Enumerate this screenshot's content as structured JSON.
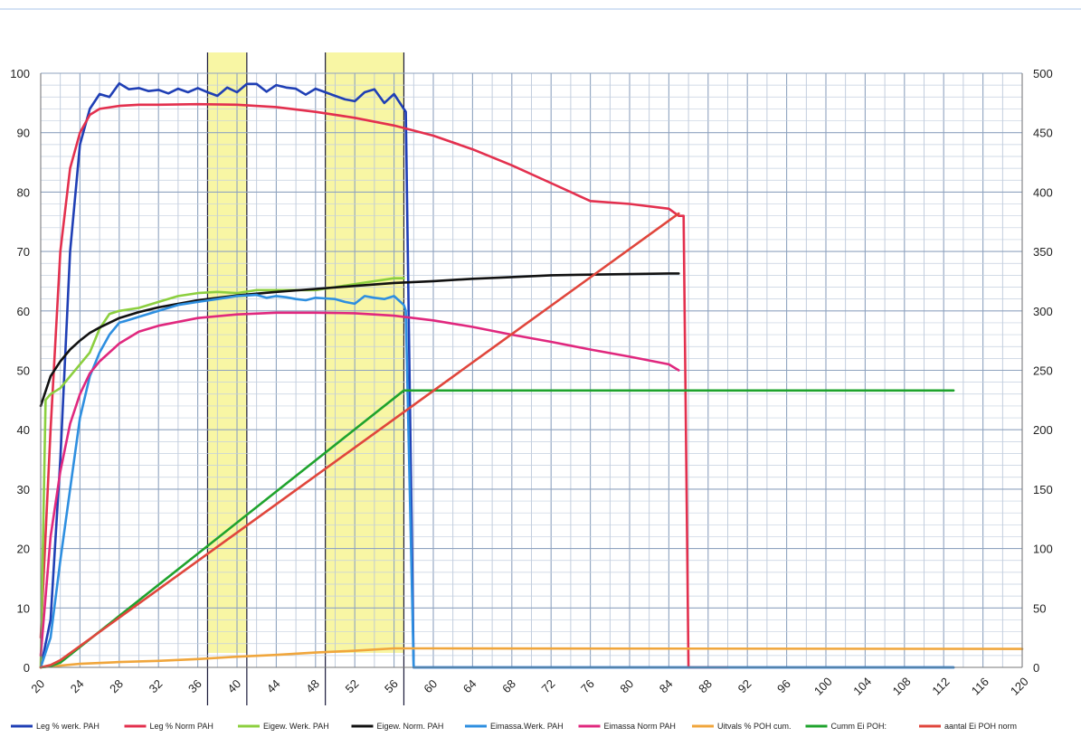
{
  "chart_data": {
    "type": "line",
    "title": "",
    "xlabel": "",
    "ylabel": "",
    "y2label": "",
    "xlim": [
      20,
      120
    ],
    "ylim": [
      0,
      100
    ],
    "y2lim": [
      0,
      500
    ],
    "x_ticks": [
      20,
      24,
      28,
      32,
      36,
      40,
      44,
      48,
      52,
      56,
      60,
      64,
      68,
      72,
      76,
      80,
      84,
      88,
      92,
      96,
      100,
      104,
      108,
      112,
      116,
      120
    ],
    "y_ticks": [
      0,
      10,
      20,
      30,
      40,
      50,
      60,
      70,
      80,
      90,
      100
    ],
    "y2_ticks": [
      0,
      50,
      100,
      150,
      200,
      250,
      300,
      350,
      400,
      450,
      500
    ],
    "grid": true,
    "legend_position": "bottom",
    "highlight_bands": [
      [
        37,
        41
      ],
      [
        49,
        57
      ]
    ],
    "series": [
      {
        "name": "Leg % werk. PAH",
        "color": "#1f3fb5",
        "axis": "left",
        "x": [
          20,
          21,
          22,
          23,
          24,
          25,
          26,
          27,
          28,
          29,
          30,
          31,
          32,
          33,
          34,
          35,
          36,
          37,
          38,
          39,
          40,
          41,
          42,
          43,
          44,
          45,
          46,
          47,
          48,
          49,
          50,
          51,
          52,
          53,
          54,
          55,
          56,
          57,
          57.2,
          58,
          113
        ],
        "y": [
          0,
          8,
          35,
          70,
          88,
          94,
          96.5,
          96,
          98.3,
          97.3,
          97.5,
          97,
          97.2,
          96.6,
          97.4,
          96.8,
          97.5,
          96.8,
          96.2,
          97.6,
          96.8,
          98.2,
          98.2,
          96.9,
          98,
          97.6,
          97.4,
          96.4,
          97.4,
          96.8,
          96.2,
          95.6,
          95.3,
          96.8,
          97.3,
          95,
          96.5,
          94,
          93.5,
          0,
          0
        ]
      },
      {
        "name": "Leg % Norm PAH",
        "color": "#e3304e",
        "axis": "left",
        "x": [
          20,
          21,
          22,
          23,
          24,
          25,
          26,
          28,
          30,
          32,
          36,
          40,
          44,
          48,
          52,
          56,
          60,
          64,
          68,
          72,
          76,
          80,
          84,
          85,
          85.5,
          86,
          90
        ],
        "y": [
          5,
          40,
          70,
          84,
          90,
          93,
          94,
          94.5,
          94.7,
          94.7,
          94.8,
          94.7,
          94.3,
          93.5,
          92.5,
          91.2,
          89.5,
          87.2,
          84.5,
          81.5,
          78.5,
          78,
          77.2,
          76,
          76,
          0,
          0
        ]
      },
      {
        "name": "Eigew. Werk. PAH",
        "color": "#8ccf3f",
        "axis": "left",
        "x": [
          20,
          20.5,
          21,
          22,
          23,
          24,
          25,
          26,
          27,
          28,
          30,
          32,
          34,
          36,
          38,
          40,
          42,
          44,
          46,
          48,
          50,
          52,
          54,
          56,
          57
        ],
        "y": [
          0,
          45,
          46,
          47,
          49,
          51,
          53,
          57,
          59.5,
          60,
          60.5,
          61.5,
          62.5,
          63,
          63.2,
          63,
          63.5,
          63.5,
          63.5,
          63.5,
          64,
          64.5,
          65,
          65.5,
          65.5
        ]
      },
      {
        "name": "Eigew. Norm. PAH",
        "color": "#111111",
        "axis": "left",
        "x": [
          20,
          21,
          22,
          23,
          24,
          25,
          26,
          28,
          30,
          32,
          36,
          40,
          44,
          48,
          52,
          56,
          60,
          64,
          68,
          72,
          76,
          80,
          84,
          85
        ],
        "y": [
          44,
          49,
          51.5,
          53.5,
          55,
          56.3,
          57.2,
          58.8,
          59.8,
          60.6,
          61.8,
          62.6,
          63.2,
          63.7,
          64.2,
          64.7,
          65,
          65.4,
          65.7,
          66,
          66.1,
          66.2,
          66.3,
          66.3
        ]
      },
      {
        "name": "Eimassa.Werk. PAH",
        "color": "#2e8fe0",
        "axis": "left",
        "x": [
          20,
          21,
          22,
          23,
          24,
          25,
          26,
          27,
          28,
          29,
          30,
          32,
          34,
          36,
          38,
          40,
          42,
          43,
          44,
          45,
          46,
          47,
          48,
          49,
          50,
          51,
          52,
          53,
          54,
          55,
          56,
          57,
          57.2,
          58,
          113
        ],
        "y": [
          0,
          5,
          18,
          30,
          42,
          49,
          53,
          56,
          58,
          58.5,
          59,
          60,
          61,
          61.5,
          62,
          62.5,
          62.7,
          62.2,
          62.5,
          62.3,
          62,
          61.8,
          62.2,
          62.1,
          62,
          61.5,
          61.2,
          62.5,
          62.2,
          62,
          62.5,
          61,
          60,
          0,
          0
        ]
      },
      {
        "name": "Eimassa Norm PAH",
        "color": "#e0287e",
        "axis": "left",
        "x": [
          20,
          21,
          22,
          23,
          24,
          25,
          26,
          28,
          30,
          32,
          36,
          40,
          44,
          48,
          52,
          56,
          60,
          64,
          68,
          72,
          76,
          80,
          84,
          85
        ],
        "y": [
          2,
          22,
          33,
          41,
          46,
          49.5,
          51.5,
          54.5,
          56.5,
          57.5,
          58.8,
          59.4,
          59.7,
          59.7,
          59.6,
          59.2,
          58.4,
          57.3,
          56,
          54.8,
          53.5,
          52.3,
          51,
          50
        ]
      },
      {
        "name": "Uitvals % POH cum.",
        "color": "#f0a63c",
        "axis": "left",
        "x": [
          20,
          24,
          28,
          32,
          36,
          40,
          44,
          48,
          52,
          56,
          60,
          120
        ],
        "y": [
          0,
          0.6,
          0.9,
          1.1,
          1.4,
          1.8,
          2.1,
          2.5,
          2.8,
          3.2,
          3.2,
          3.1
        ]
      },
      {
        "name": "Cumm Ei POH:",
        "color": "#1fa32d",
        "axis": "right",
        "x": [
          20,
          21,
          22,
          57,
          113
        ],
        "y": [
          0,
          1,
          4,
          233,
          233
        ]
      },
      {
        "name": "aantal Ei POH norm",
        "color": "#e0463c",
        "axis": "right",
        "x": [
          20,
          21,
          22,
          85
        ],
        "y": [
          0,
          2,
          6,
          382
        ]
      }
    ]
  }
}
